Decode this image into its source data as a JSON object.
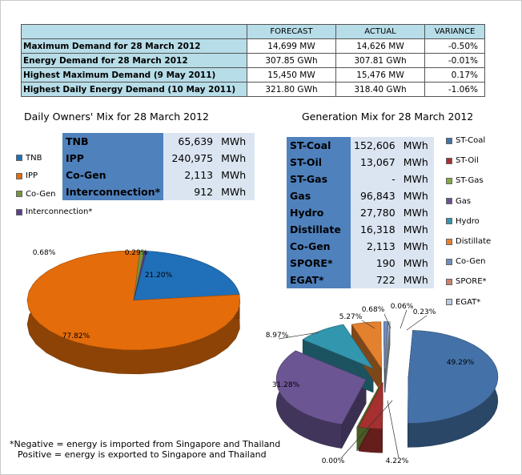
{
  "summary": {
    "headers": [
      "",
      "FORECAST",
      "ACTUAL",
      "VARIANCE"
    ],
    "rows": [
      {
        "label": "Maximum Demand for 28 March 2012",
        "forecast": "14,699  MW",
        "actual": "14,626  MW",
        "variance": "-0.50%"
      },
      {
        "label": "Energy Demand for 28 March 2012",
        "forecast": "307.85  GWh",
        "actual": "307.81  GWh",
        "variance": "-0.01%"
      },
      {
        "label": "Highest Maximum Demand (9 May 2011)",
        "forecast": "15,450  MW",
        "actual": "15,476  MW",
        "variance": "0.17%"
      },
      {
        "label": "Highest Daily Energy Demand (10 May 2011)",
        "forecast": "321.80  GWh",
        "actual": "318.40  GWh",
        "variance": "-1.06%"
      }
    ]
  },
  "owners_mix": {
    "title": "Daily Owners' Mix for 28 March 2012",
    "rows": [
      {
        "name": "TNB",
        "value": "65,639",
        "unit": "MWh"
      },
      {
        "name": "IPP",
        "value": "240,975",
        "unit": "MWh"
      },
      {
        "name": "Co-Gen",
        "value": "2,113",
        "unit": "MWh"
      },
      {
        "name": "Interconnection*",
        "value": "912",
        "unit": "MWh"
      }
    ],
    "legend": [
      "TNB",
      "IPP",
      "Co-Gen",
      "Interconnection*"
    ]
  },
  "generation_mix": {
    "title": "Generation Mix for 28 March 2012",
    "rows": [
      {
        "name": "ST-Coal",
        "value": "152,606",
        "unit": "MWh"
      },
      {
        "name": "ST-Oil",
        "value": "13,067",
        "unit": "MWh"
      },
      {
        "name": "ST-Gas",
        "value": "-",
        "unit": "MWh"
      },
      {
        "name": "Gas",
        "value": "96,843",
        "unit": "MWh"
      },
      {
        "name": "Hydro",
        "value": "27,780",
        "unit": "MWh"
      },
      {
        "name": "Distillate",
        "value": "16,318",
        "unit": "MWh"
      },
      {
        "name": "Co-Gen",
        "value": "2,113",
        "unit": "MWh"
      },
      {
        "name": "SPORE*",
        "value": "190",
        "unit": "MWh"
      },
      {
        "name": "EGAT*",
        "value": "722",
        "unit": "MWh"
      }
    ],
    "legend": [
      "ST-Coal",
      "ST-Oil",
      "ST-Gas",
      "Gas",
      "Hydro",
      "Distillate",
      "Co-Gen",
      "SPORE*",
      "EGAT*"
    ]
  },
  "chart_data": [
    {
      "type": "pie",
      "title": "Daily Owners' Mix for 28 March 2012",
      "categories": [
        "TNB",
        "IPP",
        "Co-Gen",
        "Interconnection*"
      ],
      "values": [
        21.2,
        77.82,
        0.68,
        0.29
      ],
      "labels": [
        "21.20%",
        "77.82%",
        "0.68%",
        "0.29%"
      ],
      "colors": [
        "#1f70b8",
        "#e46c0a",
        "#77933c",
        "#5b3f8c"
      ],
      "legend_position": "left"
    },
    {
      "type": "pie",
      "title": "Generation Mix for 28 March 2012",
      "categories": [
        "ST-Coal",
        "ST-Oil",
        "ST-Gas",
        "Gas",
        "Hydro",
        "Distillate",
        "Co-Gen",
        "SPORE*",
        "EGAT*"
      ],
      "values": [
        49.29,
        4.22,
        0.0,
        31.28,
        8.97,
        5.27,
        0.68,
        0.06,
        0.23
      ],
      "labels": [
        "49.29%",
        "4.22%",
        "0.00%",
        "31.28%",
        "8.97%",
        "5.27%",
        "0.68%",
        "0.06%",
        "0.23%"
      ],
      "colors": [
        "#4472a8",
        "#a5302f",
        "#86a844",
        "#6b5593",
        "#3296ae",
        "#e4812e",
        "#6f8fc4",
        "#c9826b",
        "#b9cbe4"
      ],
      "legend_position": "right"
    }
  ],
  "note": {
    "line1": "*Negative = energy is imported from Singapore and Thailand",
    "line2": "Positive = energy is exported to Singapore and Thailand"
  }
}
